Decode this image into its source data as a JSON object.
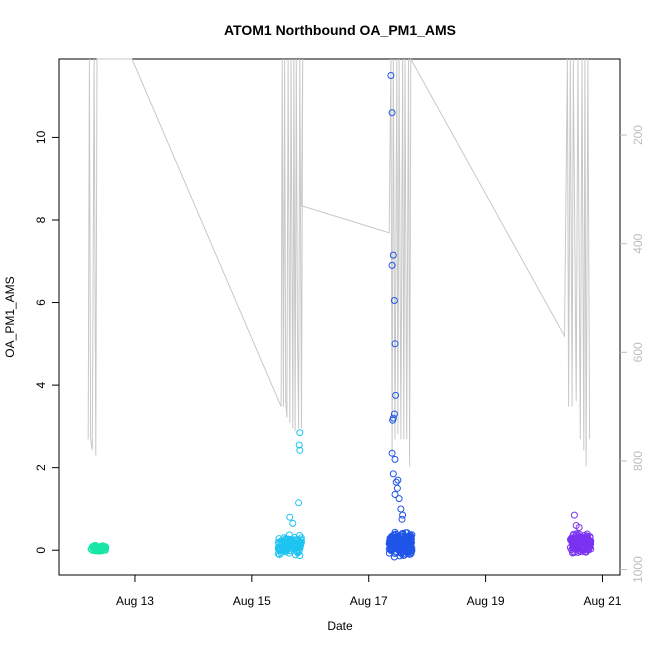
{
  "chart_data": {
    "type": "scatter",
    "title": "ATOM1 Northbound OA_PM1_AMS",
    "xlabel": "Date",
    "ylabel": "OA_PM1_AMS",
    "x_tick_labels": [
      "Aug 13",
      "Aug 15",
      "Aug 17",
      "Aug 19",
      "Aug 21"
    ],
    "x_ticks_day": [
      13,
      15,
      17,
      19,
      21
    ],
    "xlim_day": [
      11.7,
      21.3
    ],
    "y_ticks": [
      0,
      2,
      4,
      6,
      8,
      10
    ],
    "y_tick_labels": [
      "0",
      "2",
      "4",
      "6",
      "8",
      "10"
    ],
    "ylim": [
      -0.6,
      11.9
    ],
    "y2_ticks": [
      200,
      400,
      600,
      800,
      1000
    ],
    "y2_tick_labels": [
      "200",
      "400",
      "600",
      "800",
      "1000"
    ],
    "y2lim": [
      1010,
      60
    ],
    "y2_reversed": true,
    "colors": {
      "series_1": "#19e6a6",
      "series_2": "#1ec4f0",
      "series_3": "#1f55e8",
      "series_4": "#7a33f0",
      "pressure_line": "#c8c8c8",
      "axis": "#000000",
      "right_axis": "#bdbdbd"
    },
    "series": [
      {
        "color": "#19e6a6",
        "x_range_day": [
          12.25,
          12.5
        ],
        "y_base": 0.05,
        "y_spread": 0.12,
        "n": 80,
        "peaks": []
      },
      {
        "color": "#1ec4f0",
        "x_range_day": [
          15.45,
          15.85
        ],
        "y_base": 0.12,
        "y_spread": 0.35,
        "n": 120,
        "peaks": [
          [
            15.82,
            2.85
          ],
          [
            15.81,
            2.55
          ],
          [
            15.82,
            2.42
          ],
          [
            15.8,
            1.15
          ],
          [
            15.65,
            0.8
          ],
          [
            15.7,
            0.65
          ]
        ]
      },
      {
        "color": "#1f55e8",
        "x_range_day": [
          17.35,
          17.75
        ],
        "y_base": 0.15,
        "y_spread": 0.45,
        "n": 220,
        "peaks": [
          [
            17.38,
            11.5
          ],
          [
            17.4,
            10.6
          ],
          [
            17.42,
            7.15
          ],
          [
            17.4,
            6.9
          ],
          [
            17.44,
            6.05
          ],
          [
            17.45,
            5.0
          ],
          [
            17.46,
            3.75
          ],
          [
            17.44,
            3.3
          ],
          [
            17.42,
            3.2
          ],
          [
            17.41,
            3.15
          ],
          [
            17.4,
            2.35
          ],
          [
            17.45,
            2.2
          ],
          [
            17.42,
            1.85
          ],
          [
            17.5,
            1.7
          ],
          [
            17.47,
            1.65
          ],
          [
            17.49,
            1.5
          ],
          [
            17.45,
            1.35
          ],
          [
            17.52,
            1.25
          ],
          [
            17.55,
            1.0
          ],
          [
            17.58,
            0.85
          ],
          [
            17.57,
            0.75
          ]
        ]
      },
      {
        "color": "#7a33f0",
        "x_range_day": [
          20.45,
          20.8
        ],
        "y_base": 0.18,
        "y_spread": 0.35,
        "n": 160,
        "peaks": [
          [
            20.52,
            0.85
          ],
          [
            20.55,
            0.6
          ],
          [
            20.6,
            0.55
          ]
        ]
      }
    ],
    "pressure_y2": {
      "axis": "right",
      "values": [
        [
          12.2,
          760
        ],
        [
          12.22,
          60
        ],
        [
          12.24,
          760
        ],
        [
          12.27,
          780
        ],
        [
          12.3,
          60
        ],
        [
          12.33,
          790
        ],
        [
          12.35,
          60
        ],
        [
          12.38,
          60
        ],
        [
          12.95,
          60
        ],
        [
          15.5,
          700
        ],
        [
          15.52,
          60
        ],
        [
          15.54,
          700
        ],
        [
          15.56,
          60
        ],
        [
          15.58,
          690
        ],
        [
          15.6,
          720
        ],
        [
          15.62,
          60
        ],
        [
          15.65,
          730
        ],
        [
          15.67,
          60
        ],
        [
          15.7,
          740
        ],
        [
          15.72,
          60
        ],
        [
          15.74,
          745
        ],
        [
          15.76,
          60
        ],
        [
          15.78,
          550
        ],
        [
          15.8,
          740
        ],
        [
          15.82,
          60
        ],
        [
          15.85,
          740
        ],
        [
          15.87,
          60
        ],
        [
          15.85,
          330
        ],
        [
          17.35,
          380
        ],
        [
          17.38,
          60
        ],
        [
          17.4,
          790
        ],
        [
          17.42,
          60
        ],
        [
          17.45,
          760
        ],
        [
          17.48,
          60
        ],
        [
          17.5,
          750
        ],
        [
          17.52,
          60
        ],
        [
          17.55,
          760
        ],
        [
          17.58,
          60
        ],
        [
          17.6,
          760
        ],
        [
          17.62,
          60
        ],
        [
          17.65,
          760
        ],
        [
          17.68,
          60
        ],
        [
          17.7,
          810
        ],
        [
          17.72,
          60
        ],
        [
          20.35,
          570
        ],
        [
          20.4,
          60
        ],
        [
          20.42,
          700
        ],
        [
          20.45,
          60
        ],
        [
          20.48,
          700
        ],
        [
          20.5,
          60
        ],
        [
          20.55,
          690
        ],
        [
          20.58,
          60
        ],
        [
          20.62,
          760
        ],
        [
          20.65,
          60
        ],
        [
          20.68,
          780
        ],
        [
          20.7,
          60
        ],
        [
          20.72,
          810
        ],
        [
          20.75,
          60
        ],
        [
          20.78,
          760
        ]
      ]
    }
  }
}
